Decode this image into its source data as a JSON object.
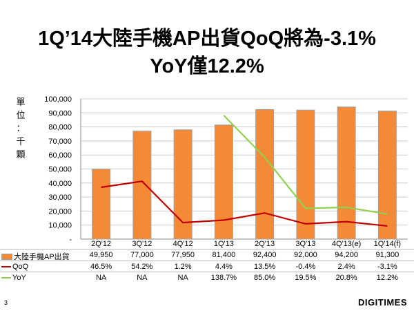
{
  "title_line1": "1Q’14大陸手機AP出貨QoQ將為-3.1%",
  "title_line2": "YoY僅12.2%",
  "unit_label": [
    "單",
    "位",
    "：",
    "千",
    "顆"
  ],
  "page_number": "3",
  "logo": "DIGITIMES",
  "chart_data": {
    "type": "bar",
    "categories": [
      "2Q'12",
      "3Q'12",
      "4Q'12",
      "1Q'13",
      "2Q'13",
      "3Q'13",
      "4Q'13(e)",
      "1Q'14(f)"
    ],
    "ylim": [
      0,
      100000
    ],
    "y2lim": [
      -20,
      160
    ],
    "yticks": [
      "-",
      "10,000",
      "20,000",
      "30,000",
      "40,000",
      "50,000",
      "60,000",
      "70,000",
      "80,000",
      "90,000",
      "100,000"
    ],
    "grid": true,
    "series": [
      {
        "name": "大陸手機AP出貨",
        "type": "bar",
        "axis": "left",
        "color": "#F58A36",
        "values": [
          49950,
          77000,
          77950,
          81400,
          92400,
          92000,
          94200,
          91300
        ],
        "labels": [
          "49,950",
          "77,000",
          "77,950",
          "81,400",
          "92,400",
          "92,000",
          "94,200",
          "91,300"
        ]
      },
      {
        "name": "QoQ",
        "type": "line",
        "axis": "right",
        "color": "#C00000",
        "values": [
          46.5,
          54.2,
          1.2,
          4.4,
          13.5,
          -0.4,
          2.4,
          -3.1
        ],
        "labels": [
          "46.5%",
          "54.2%",
          "1.2%",
          "4.4%",
          "13.5%",
          "-0.4%",
          "2.4%",
          "-3.1%"
        ]
      },
      {
        "name": "YoY",
        "type": "line",
        "axis": "right",
        "color": "#92D050",
        "values": [
          null,
          null,
          null,
          138.7,
          85.0,
          19.5,
          20.8,
          12.2
        ],
        "labels": [
          "NA",
          "NA",
          "NA",
          "138.7%",
          "85.0%",
          "19.5%",
          "20.8%",
          "12.2%"
        ]
      }
    ]
  }
}
